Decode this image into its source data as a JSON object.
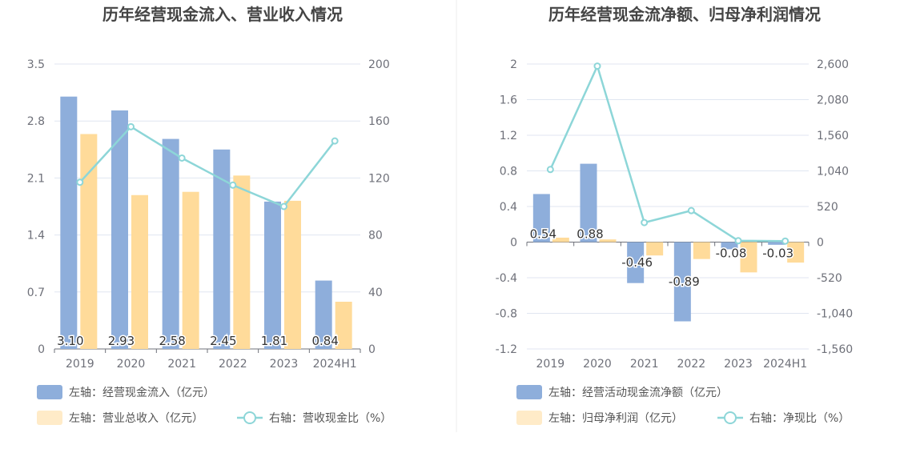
{
  "chart_data": [
    {
      "type": "bar",
      "title": "历年经营现金流入、营业收入情况",
      "categories": [
        "2019",
        "2020",
        "2021",
        "2022",
        "2023",
        "2024H1"
      ],
      "left_axis": {
        "ticks": [
          "0",
          "0.7",
          "1.4",
          "2.1",
          "2.8",
          "3.5"
        ],
        "ylim": [
          0,
          3.5
        ]
      },
      "right_axis": {
        "ticks": [
          "0",
          "40",
          "80",
          "120",
          "160",
          "200"
        ],
        "ylim": [
          0,
          200
        ]
      },
      "series": [
        {
          "name": "左轴：经营现金流入（亿元）",
          "type": "bar",
          "axis": "left",
          "color": "#8eaedb",
          "values": [
            3.1,
            2.93,
            2.58,
            2.45,
            1.81,
            0.84
          ],
          "labels": [
            "3.10",
            "2.93",
            "2.58",
            "2.45",
            "1.81",
            "0.84"
          ]
        },
        {
          "name": "左轴：营业总收入（亿元）",
          "type": "bar",
          "axis": "left",
          "color": "#ffdb9a",
          "values": [
            2.64,
            1.89,
            1.93,
            2.13,
            1.82,
            0.58
          ]
        },
        {
          "name": "右轴：营收现金比（%）",
          "type": "line",
          "axis": "right",
          "color": "#8dd6d8",
          "values": [
            117,
            156,
            134,
            115,
            100,
            146
          ]
        }
      ],
      "grid": true,
      "legend_position": "bottom"
    },
    {
      "type": "bar",
      "title": "历年经营现金流净额、归母净利润情况",
      "categories": [
        "2019",
        "2020",
        "2021",
        "2022",
        "2023",
        "2024H1"
      ],
      "left_axis": {
        "ticks": [
          "-1.2",
          "-0.8",
          "-0.4",
          "0",
          "0.4",
          "0.8",
          "1.2",
          "1.6",
          "2"
        ],
        "ylim": [
          -1.2,
          2
        ]
      },
      "right_axis": {
        "ticks": [
          "-1,560",
          "-1,040",
          "-520",
          "0",
          "520",
          "1,040",
          "1,560",
          "2,080",
          "2,600"
        ],
        "ylim": [
          -1560,
          2600
        ]
      },
      "series": [
        {
          "name": "左轴：经营活动现金流净额（亿元）",
          "type": "bar",
          "axis": "left",
          "color": "#8eaedb",
          "values": [
            0.54,
            0.88,
            -0.46,
            -0.89,
            -0.08,
            -0.03
          ],
          "labels": [
            "0.54",
            "0.88",
            "-0.46",
            "-0.89",
            "-0.08",
            "-0.03"
          ]
        },
        {
          "name": "左轴：归母净利润（亿元）",
          "type": "bar",
          "axis": "left",
          "color": "#ffdb9a",
          "values": [
            0.05,
            0.03,
            -0.15,
            -0.19,
            -0.34,
            -0.23
          ]
        },
        {
          "name": "右轴：净现比（%）",
          "type": "line",
          "axis": "right",
          "color": "#8dd6d8",
          "values": [
            1060,
            2570,
            285,
            460,
            20,
            15
          ]
        }
      ],
      "grid": true,
      "legend_position": "bottom"
    }
  ]
}
